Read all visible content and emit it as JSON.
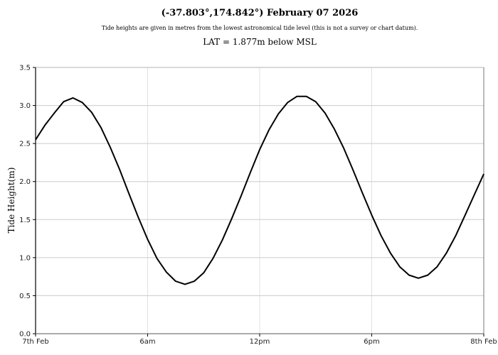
{
  "header": {
    "title": "(-37.803°,174.842°) February 07 2026",
    "subtitle": "Tide heights are given in metres from the lowest astronomical tide level (this is not a survey or chart datum).",
    "lat_note": "LAT = 1.877m below MSL"
  },
  "colors": {
    "line": "#000000",
    "grid": "#cccccc",
    "vgrid": "#e0e0e0",
    "axis": "#000000"
  },
  "chart_data": {
    "type": "line",
    "title": "(-37.803°,174.842°) February 07 2026",
    "subtitle": "Tide heights are given in metres from the lowest astronomical tide level (this is not a survey or chart datum).",
    "annotation": "LAT = 1.877m below MSL",
    "xlabel": "",
    "ylabel": "Tide Height(m)",
    "xlim": [
      0,
      24
    ],
    "ylim": [
      0,
      3.5
    ],
    "grid": true,
    "legend": null,
    "x_ticks": [
      {
        "value": 0,
        "label": "7th Feb"
      },
      {
        "value": 6,
        "label": "6am"
      },
      {
        "value": 12,
        "label": "12pm"
      },
      {
        "value": 18,
        "label": "6pm"
      },
      {
        "value": 24,
        "label": "8th Feb"
      }
    ],
    "y_ticks": [
      {
        "value": 0,
        "label": "0.0"
      },
      {
        "value": 0.5,
        "label": "0.5"
      },
      {
        "value": 1.0,
        "label": "1.0"
      },
      {
        "value": 1.5,
        "label": "1.5"
      },
      {
        "value": 2.0,
        "label": "2.0"
      },
      {
        "value": 2.5,
        "label": "2.5"
      },
      {
        "value": 3.0,
        "label": "3.0"
      },
      {
        "value": 3.5,
        "label": "3.5"
      }
    ],
    "extrema": [
      {
        "type": "high",
        "hour": 1.9,
        "height": 3.1
      },
      {
        "type": "low",
        "hour": 8.0,
        "height": 0.65
      },
      {
        "type": "high",
        "hour": 14.25,
        "height": 3.13
      },
      {
        "type": "low",
        "hour": 20.5,
        "height": 0.73
      }
    ],
    "series": [
      {
        "name": "Tide Height",
        "x": [
          0,
          0.5,
          1,
          1.5,
          2,
          2.5,
          3,
          3.5,
          4,
          4.5,
          5,
          5.5,
          6,
          6.5,
          7,
          7.5,
          8,
          8.5,
          9,
          9.5,
          10,
          10.5,
          11,
          11.5,
          12,
          12.5,
          13,
          13.5,
          14,
          14.5,
          15,
          15.5,
          16,
          16.5,
          17,
          17.5,
          18,
          18.5,
          19,
          19.5,
          20,
          20.5,
          21,
          21.5,
          22,
          22.5,
          23,
          23.5,
          24
        ],
        "values": [
          2.55,
          2.74,
          2.9,
          3.05,
          3.1,
          3.04,
          2.91,
          2.71,
          2.45,
          2.16,
          1.84,
          1.53,
          1.24,
          0.99,
          0.81,
          0.69,
          0.65,
          0.69,
          0.8,
          0.99,
          1.23,
          1.51,
          1.81,
          2.12,
          2.42,
          2.68,
          2.89,
          3.04,
          3.12,
          3.12,
          3.05,
          2.9,
          2.69,
          2.44,
          2.15,
          1.85,
          1.56,
          1.29,
          1.06,
          0.88,
          0.77,
          0.73,
          0.77,
          0.88,
          1.06,
          1.29,
          1.56,
          1.83,
          2.1
        ]
      }
    ]
  }
}
